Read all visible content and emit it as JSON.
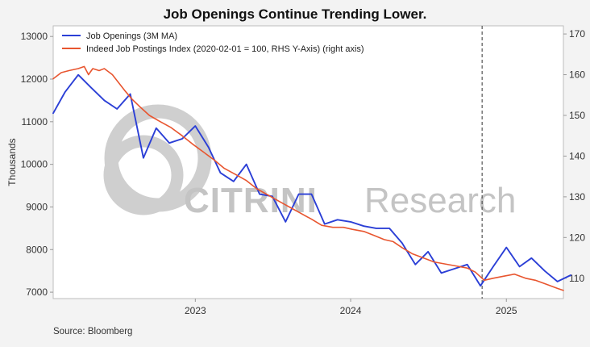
{
  "title": "Job Openings Continue Trending Lower.",
  "source": "Source: Bloomberg",
  "watermark": {
    "brand": "CITRINI",
    "suffix": "Research",
    "color": "#c4c4c4"
  },
  "colors": {
    "job_openings": "#2b3fd6",
    "indeed": "#e8552f",
    "divider": "#555555",
    "background": "#f3f3f3"
  },
  "chart_data": {
    "type": "line",
    "ylabel": "Thousands",
    "ylim": [
      6850,
      13250
    ],
    "y2lim": [
      105,
      172
    ],
    "yticks": [
      7000,
      8000,
      9000,
      10000,
      11000,
      12000,
      13000
    ],
    "y2ticks": [
      110,
      120,
      130,
      140,
      150,
      160,
      170
    ],
    "xlim": [
      "2022-02-01",
      "2025-05-15"
    ],
    "xticks": [
      "2023",
      "2024",
      "2025"
    ],
    "xtick_dates": [
      "2023-01-01",
      "2024-01-01",
      "2025-01-01"
    ],
    "vline_date": "2024-11-05",
    "legend_position": "top-left",
    "grid": false,
    "series": [
      {
        "name": "Job Openings (3M MA)",
        "axis": "left",
        "points": [
          [
            "2022-02-01",
            11200
          ],
          [
            "2022-03-01",
            11700
          ],
          [
            "2022-04-01",
            12100
          ],
          [
            "2022-05-01",
            11800
          ],
          [
            "2022-06-01",
            11500
          ],
          [
            "2022-07-01",
            11300
          ],
          [
            "2022-08-01",
            11650
          ],
          [
            "2022-09-01",
            10150
          ],
          [
            "2022-10-01",
            10850
          ],
          [
            "2022-11-01",
            10500
          ],
          [
            "2022-12-01",
            10600
          ],
          [
            "2023-01-01",
            10900
          ],
          [
            "2023-02-01",
            10400
          ],
          [
            "2023-03-01",
            9800
          ],
          [
            "2023-04-01",
            9600
          ],
          [
            "2023-05-01",
            10000
          ],
          [
            "2023-06-01",
            9300
          ],
          [
            "2023-07-01",
            9250
          ],
          [
            "2023-08-01",
            8650
          ],
          [
            "2023-09-01",
            9300
          ],
          [
            "2023-10-01",
            9300
          ],
          [
            "2023-11-01",
            8600
          ],
          [
            "2023-12-01",
            8700
          ],
          [
            "2024-01-01",
            8650
          ],
          [
            "2024-02-01",
            8550
          ],
          [
            "2024-03-01",
            8500
          ],
          [
            "2024-04-01",
            8500
          ],
          [
            "2024-05-01",
            8150
          ],
          [
            "2024-06-01",
            7650
          ],
          [
            "2024-07-01",
            7950
          ],
          [
            "2024-08-01",
            7450
          ],
          [
            "2024-09-01",
            7550
          ],
          [
            "2024-10-01",
            7650
          ],
          [
            "2024-11-01",
            7150
          ],
          [
            "2024-12-01",
            7600
          ],
          [
            "2025-01-01",
            8050
          ],
          [
            "2025-02-01",
            7600
          ],
          [
            "2025-03-01",
            7800
          ],
          [
            "2025-04-01",
            7500
          ],
          [
            "2025-05-01",
            7250
          ],
          [
            "2025-06-01",
            7400
          ]
        ]
      },
      {
        "name": "Indeed Job Postings Index (2020-02-01 = 100, RHS Y-Axis) (right axis)",
        "axis": "right",
        "points": [
          [
            "2022-02-01",
            159
          ],
          [
            "2022-02-20",
            160.5
          ],
          [
            "2022-03-10",
            161
          ],
          [
            "2022-04-01",
            161.5
          ],
          [
            "2022-04-15",
            162
          ],
          [
            "2022-04-25",
            160
          ],
          [
            "2022-05-05",
            161.5
          ],
          [
            "2022-05-20",
            161
          ],
          [
            "2022-06-01",
            161.5
          ],
          [
            "2022-06-20",
            160
          ],
          [
            "2022-07-05",
            158
          ],
          [
            "2022-07-20",
            156
          ],
          [
            "2022-08-05",
            154
          ],
          [
            "2022-08-25",
            152
          ],
          [
            "2022-09-15",
            150
          ],
          [
            "2022-10-10",
            148.5
          ],
          [
            "2022-11-05",
            147
          ],
          [
            "2022-12-01",
            145
          ],
          [
            "2022-12-25",
            143
          ],
          [
            "2023-01-20",
            141
          ],
          [
            "2023-02-15",
            139
          ],
          [
            "2023-03-10",
            137
          ],
          [
            "2023-04-05",
            135.5
          ],
          [
            "2023-05-01",
            134
          ],
          [
            "2023-05-25",
            132
          ],
          [
            "2023-06-20",
            130.5
          ],
          [
            "2023-07-15",
            129
          ],
          [
            "2023-08-10",
            127.5
          ],
          [
            "2023-09-05",
            126
          ],
          [
            "2023-10-01",
            124.5
          ],
          [
            "2023-10-25",
            123
          ],
          [
            "2023-11-20",
            122.5
          ],
          [
            "2023-12-15",
            122.5
          ],
          [
            "2024-01-05",
            122
          ],
          [
            "2024-02-01",
            121.5
          ],
          [
            "2024-02-25",
            120.5
          ],
          [
            "2024-03-20",
            119.5
          ],
          [
            "2024-04-10",
            119
          ],
          [
            "2024-05-01",
            117.5
          ],
          [
            "2024-05-25",
            116
          ],
          [
            "2024-06-20",
            115
          ],
          [
            "2024-07-15",
            114
          ],
          [
            "2024-08-10",
            113.5
          ],
          [
            "2024-09-05",
            113
          ],
          [
            "2024-10-01",
            112.5
          ],
          [
            "2024-10-20",
            111.5
          ],
          [
            "2024-11-10",
            109.5
          ],
          [
            "2024-12-01",
            110
          ],
          [
            "2024-12-25",
            110.5
          ],
          [
            "2025-01-20",
            111
          ],
          [
            "2025-02-15",
            110
          ],
          [
            "2025-03-10",
            109.5
          ],
          [
            "2025-04-05",
            108.5
          ],
          [
            "2025-05-01",
            107.5
          ],
          [
            "2025-05-15",
            107
          ]
        ]
      }
    ]
  }
}
